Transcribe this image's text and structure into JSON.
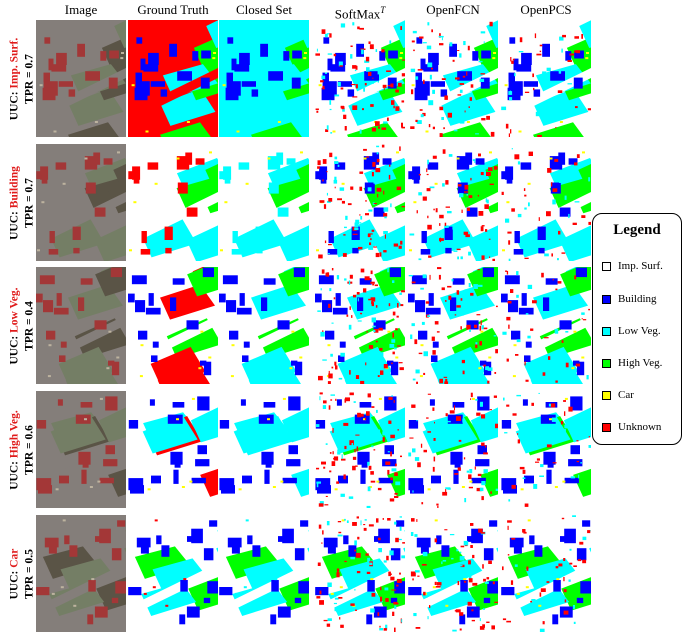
{
  "columns": [
    "Image",
    "Ground Truth",
    "Closed Set",
    "SoftMax",
    "OpenFCN",
    "OpenPCS"
  ],
  "softmax_superscript": "T",
  "rows": [
    {
      "prefix": "UUC: ",
      "uuc": "Imp. Surf.",
      "tpr": "TPR = 0.7"
    },
    {
      "prefix": "UUC: ",
      "uuc": "Building",
      "tpr": "TPR = 0.7"
    },
    {
      "prefix": "UUC: ",
      "uuc": "Low Veg.",
      "tpr": "TPR = 0.4"
    },
    {
      "prefix": "UUC: ",
      "uuc": "High Veg.",
      "tpr": "TPR = 0.6"
    },
    {
      "prefix": "UUC: ",
      "uuc": "Car",
      "tpr": "TPR = 0.5"
    }
  ],
  "legend": {
    "title": "Legend",
    "items": [
      {
        "label": "Imp. Surf.",
        "color": "#ffffff"
      },
      {
        "label": "Building",
        "color": "#0000ff"
      },
      {
        "label": "Low Veg.",
        "color": "#00ffff"
      },
      {
        "label": "High Veg.",
        "color": "#00ff00"
      },
      {
        "label": "Car",
        "color": "#ffff00"
      },
      {
        "label": "Unknown",
        "color": "#ff0000"
      }
    ]
  },
  "colors": {
    "imp_surf": "#ffffff",
    "building": "#0000ff",
    "low_veg": "#00ffff",
    "high_veg": "#00ff00",
    "car": "#ffff00",
    "unknown": "#ff0000",
    "uuc_accent": "#e01b1b"
  }
}
